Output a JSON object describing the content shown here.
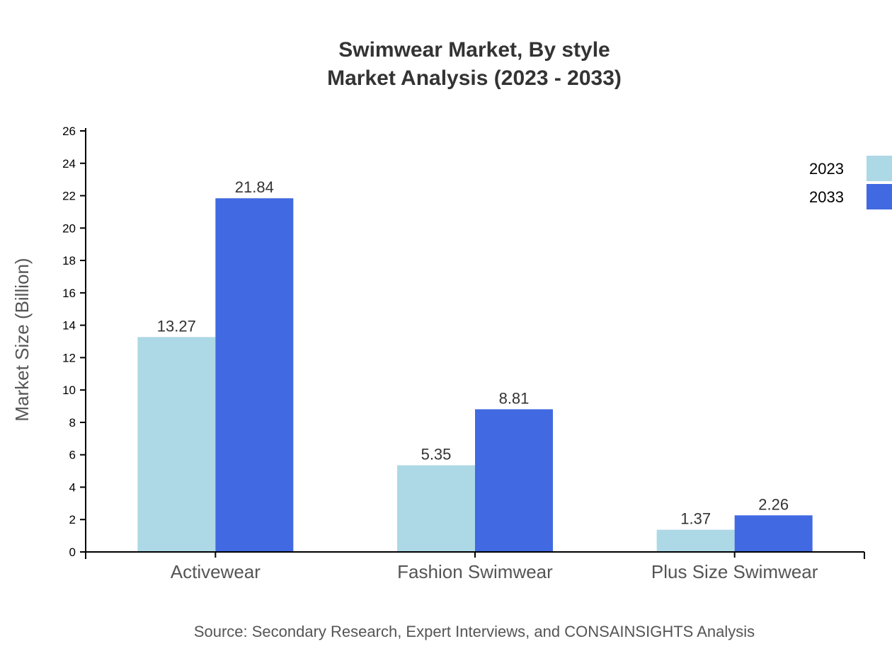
{
  "chart_data": {
    "type": "bar",
    "title": "Swimwear Market, By style",
    "subtitle": "Market Analysis (2023 - 2033)",
    "xlabel": "",
    "ylabel": "Market Size (Billion)",
    "ylim": [
      0,
      26
    ],
    "yticks": [
      0,
      2,
      4,
      6,
      8,
      10,
      12,
      14,
      16,
      18,
      20,
      22,
      24,
      26
    ],
    "categories": [
      "Activewear",
      "Fashion Swimwear",
      "Plus Size Swimwear"
    ],
    "series": [
      {
        "name": "2023",
        "values": [
          13.27,
          5.35,
          1.37
        ],
        "color": "#ADD8E6"
      },
      {
        "name": "2033",
        "values": [
          21.84,
          8.81,
          2.26
        ],
        "color": "#4169E1"
      }
    ],
    "grid": false,
    "legend_position": "top-right",
    "source": "Source: Secondary Research, Expert Interviews, and CONSAINSIGHTS Analysis"
  }
}
